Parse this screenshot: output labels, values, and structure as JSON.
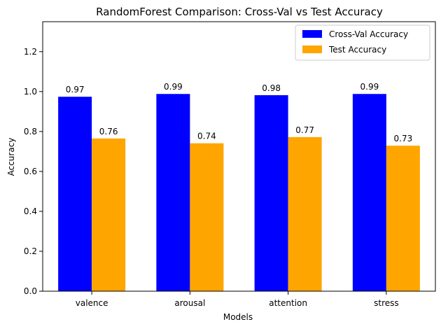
{
  "chart_data": {
    "type": "bar",
    "title": "RandomForest Comparison: Cross-Val vs Test Accuracy",
    "xlabel": "Models",
    "ylabel": "Accuracy",
    "categories": [
      "valence",
      "arousal",
      "attention",
      "stress"
    ],
    "series": [
      {
        "name": "Cross-Val Accuracy",
        "color": "#0000ff",
        "values": [
          0.974,
          0.988,
          0.982,
          0.988
        ],
        "labels": [
          "0.97",
          "0.99",
          "0.98",
          "0.99"
        ]
      },
      {
        "name": "Test Accuracy",
        "color": "#ffa500",
        "values": [
          0.765,
          0.741,
          0.772,
          0.729
        ],
        "labels": [
          "0.76",
          "0.74",
          "0.77",
          "0.73"
        ]
      }
    ],
    "ylim": [
      0,
      1.35
    ],
    "yticks": [
      0.0,
      0.2,
      0.4,
      0.6,
      0.8,
      1.0,
      1.2
    ],
    "ytick_labels": [
      "0.0",
      "0.2",
      "0.4",
      "0.6",
      "0.8",
      "1.0",
      "1.2"
    ],
    "grid": false,
    "legend_position": "top-right"
  }
}
